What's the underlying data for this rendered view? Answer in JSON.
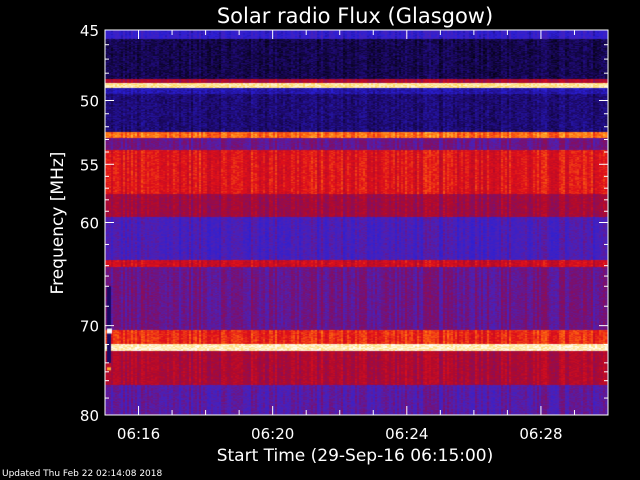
{
  "chart_data": {
    "type": "heatmap",
    "title": "Solar radio Flux (Glasgow)",
    "xlabel": "Start Time (29-Sep-16 06:15:00)",
    "ylabel": "Frequency [MHz]",
    "x_ticks": [
      "06:16",
      "06:20",
      "06:24",
      "06:28"
    ],
    "x_tick_minutes": [
      1,
      5,
      9,
      13
    ],
    "xlim_minutes": [
      0,
      15
    ],
    "y_ticks": [
      45,
      50,
      55,
      60,
      70,
      80
    ],
    "ylim": [
      45,
      80
    ],
    "yscale": "log",
    "bands": [
      {
        "f0": 45.0,
        "f1": 45.6,
        "level": 0.25
      },
      {
        "f0": 45.6,
        "f1": 48.4,
        "level": 0.08
      },
      {
        "f0": 48.4,
        "f1": 48.7,
        "level": 0.55
      },
      {
        "f0": 48.7,
        "f1": 49.1,
        "level": 0.98
      },
      {
        "f0": 49.1,
        "f1": 49.5,
        "level": 0.18
      },
      {
        "f0": 49.5,
        "f1": 52.4,
        "level": 0.12
      },
      {
        "f0": 52.4,
        "f1": 52.9,
        "level": 0.78
      },
      {
        "f0": 52.9,
        "f1": 53.8,
        "level": 0.4
      },
      {
        "f0": 53.8,
        "f1": 57.5,
        "level": 0.66
      },
      {
        "f0": 57.5,
        "f1": 59.5,
        "level": 0.52
      },
      {
        "f0": 59.5,
        "f1": 63.5,
        "level": 0.32
      },
      {
        "f0": 63.5,
        "f1": 64.1,
        "level": 0.62
      },
      {
        "f0": 64.1,
        "f1": 70.5,
        "level": 0.4
      },
      {
        "f0": 70.5,
        "f1": 72.0,
        "level": 0.7
      },
      {
        "f0": 72.0,
        "f1": 72.7,
        "level": 1.0
      },
      {
        "f0": 72.7,
        "f1": 76.5,
        "level": 0.55
      },
      {
        "f0": 76.5,
        "f1": 80.0,
        "level": 0.36
      }
    ],
    "colormap": [
      "#000000",
      "#1e0a6e",
      "#2a1fd6",
      "#4b21b8",
      "#7d0f6a",
      "#b00a2c",
      "#e0101a",
      "#ff6a10",
      "#ffd040",
      "#ffffff"
    ]
  },
  "footer": "Updated Thu Feb 22 02:14:08 2018"
}
